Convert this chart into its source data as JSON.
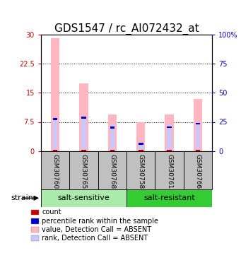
{
  "title": "GDS1547 / rc_AI072432_at",
  "samples": [
    "GSM30760",
    "GSM30765",
    "GSM30768",
    "GSM30758",
    "GSM30761",
    "GSM30766"
  ],
  "groups": [
    "salt-sensitive",
    "salt-sensitive",
    "salt-sensitive",
    "salt-resistant",
    "salt-resistant",
    "salt-resistant"
  ],
  "absent_bar_values": [
    29.0,
    17.5,
    9.5,
    7.5,
    9.5,
    13.5
  ],
  "absent_rank_values_pct": [
    28.0,
    29.0,
    22.0,
    7.0,
    22.0,
    24.0
  ],
  "rank_marker_values_pct": [
    27.5,
    28.5,
    20.0,
    6.0,
    20.5,
    23.5
  ],
  "ylim_left": [
    0,
    30
  ],
  "ylim_right": [
    0,
    100
  ],
  "yticks_left": [
    0,
    7.5,
    15,
    22.5,
    30
  ],
  "yticks_right": [
    0,
    25,
    50,
    75,
    100
  ],
  "ytick_labels_left": [
    "0",
    "7.5",
    "15",
    "22.5",
    "30"
  ],
  "ytick_labels_right": [
    "0",
    "25",
    "50",
    "75",
    "100%"
  ],
  "bar_width": 0.3,
  "absent_bar_color": "#FFB6C1",
  "absent_rank_color": "#C8C8FF",
  "count_color": "#CC0000",
  "rank_color": "#0000CC",
  "grid_color": "black",
  "background_color": "white",
  "plot_bg_color": "white",
  "label_area_color": "#C0C0C0",
  "group_ss_color": "#AAEAAA",
  "group_sr_color": "#33CC33",
  "group_label_fontsize": 8,
  "tick_label_fontsize": 7,
  "title_fontsize": 11,
  "sample_fontsize": 6.5
}
